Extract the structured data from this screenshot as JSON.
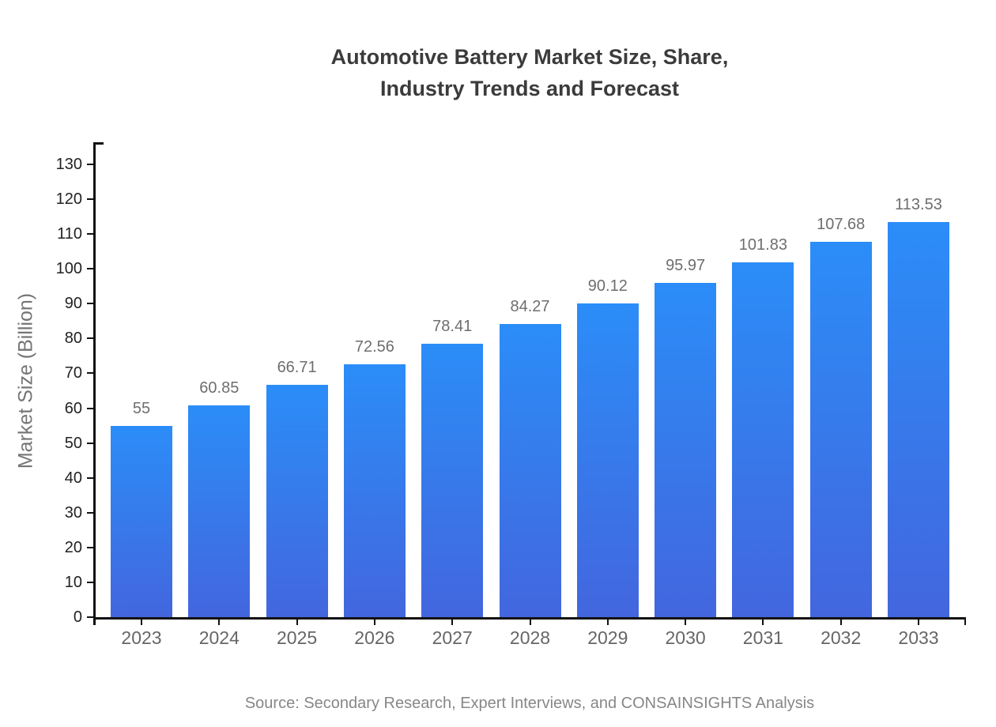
{
  "title": {
    "line1": "Automotive Battery Market Size, Share,",
    "line2": "Industry Trends and Forecast"
  },
  "source": "Source: Secondary Research, Expert Interviews, and CONSAINSIGHTS Analysis",
  "colors": {
    "bar_gradient_top": "#2B8DF8",
    "bar_gradient_bottom": "#4366DE",
    "axis": "#111111",
    "title_text": "#3b3b3b",
    "y_tick_text": "#222222",
    "x_tick_text": "#666666",
    "value_label_text": "#6e6e6e",
    "source_text": "#878787",
    "background": "#ffffff"
  },
  "chart_data": {
    "type": "bar",
    "title": "Automotive Battery Market Size, Share, Industry Trends and Forecast",
    "categories": [
      "2023",
      "2024",
      "2025",
      "2026",
      "2027",
      "2028",
      "2029",
      "2030",
      "2031",
      "2032",
      "2033"
    ],
    "values": [
      55,
      60.85,
      66.71,
      72.56,
      78.41,
      84.27,
      90.12,
      95.97,
      101.83,
      107.68,
      113.53
    ],
    "value_labels": [
      "55",
      "60.85",
      "66.71",
      "72.56",
      "78.41",
      "84.27",
      "90.12",
      "95.97",
      "101.83",
      "107.68",
      "113.53"
    ],
    "xlabel": "",
    "ylabel": "Market Size (Billion)",
    "ylim": [
      0,
      130
    ],
    "ytick_step": 10,
    "ytick_labels": [
      "0",
      "10",
      "20",
      "30",
      "40",
      "50",
      "60",
      "70",
      "80",
      "90",
      "100",
      "110",
      "120",
      "130"
    ],
    "grid": false,
    "legend": null,
    "caption": "Source: Secondary Research, Expert Interviews, and CONSAINSIGHTS Analysis"
  }
}
